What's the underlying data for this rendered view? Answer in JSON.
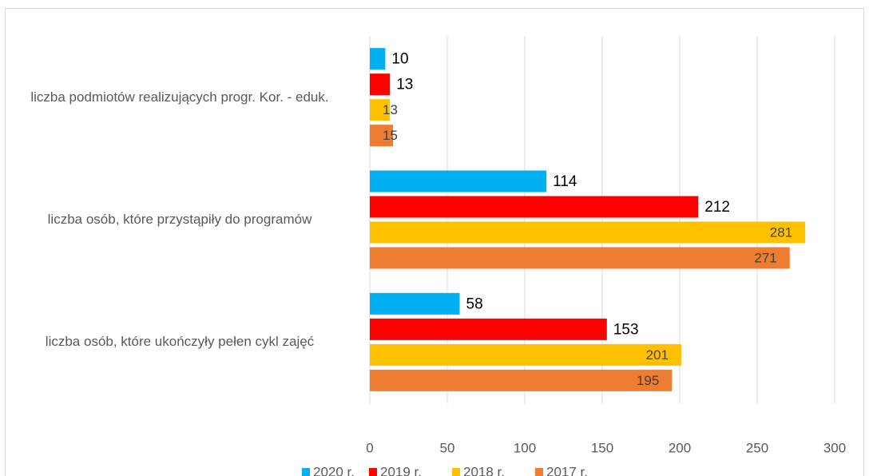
{
  "chart_data": {
    "type": "hbar",
    "categories": [
      "liczba podmiotów realizujących progr. Kor. - eduk.",
      "liczba osób, które przystąpiły do programów",
      "liczba osób, które ukończyły pełen cykl zajęć"
    ],
    "series": [
      {
        "name": "2020 r.",
        "color": "#00b0f0",
        "values": [
          10,
          114,
          58
        ]
      },
      {
        "name": "2019 r.",
        "color": "#ff0000",
        "values": [
          13,
          212,
          153
        ]
      },
      {
        "name": "2018 r.",
        "color": "#ffc000",
        "values": [
          13,
          281,
          201
        ]
      },
      {
        "name": "2017 r.",
        "color": "#ed7d31",
        "values": [
          15,
          271,
          195
        ]
      }
    ],
    "xlim": [
      0,
      300
    ],
    "xticks": [
      0,
      50,
      100,
      150,
      200,
      250,
      300
    ],
    "grid": true,
    "legend": "bottom"
  }
}
